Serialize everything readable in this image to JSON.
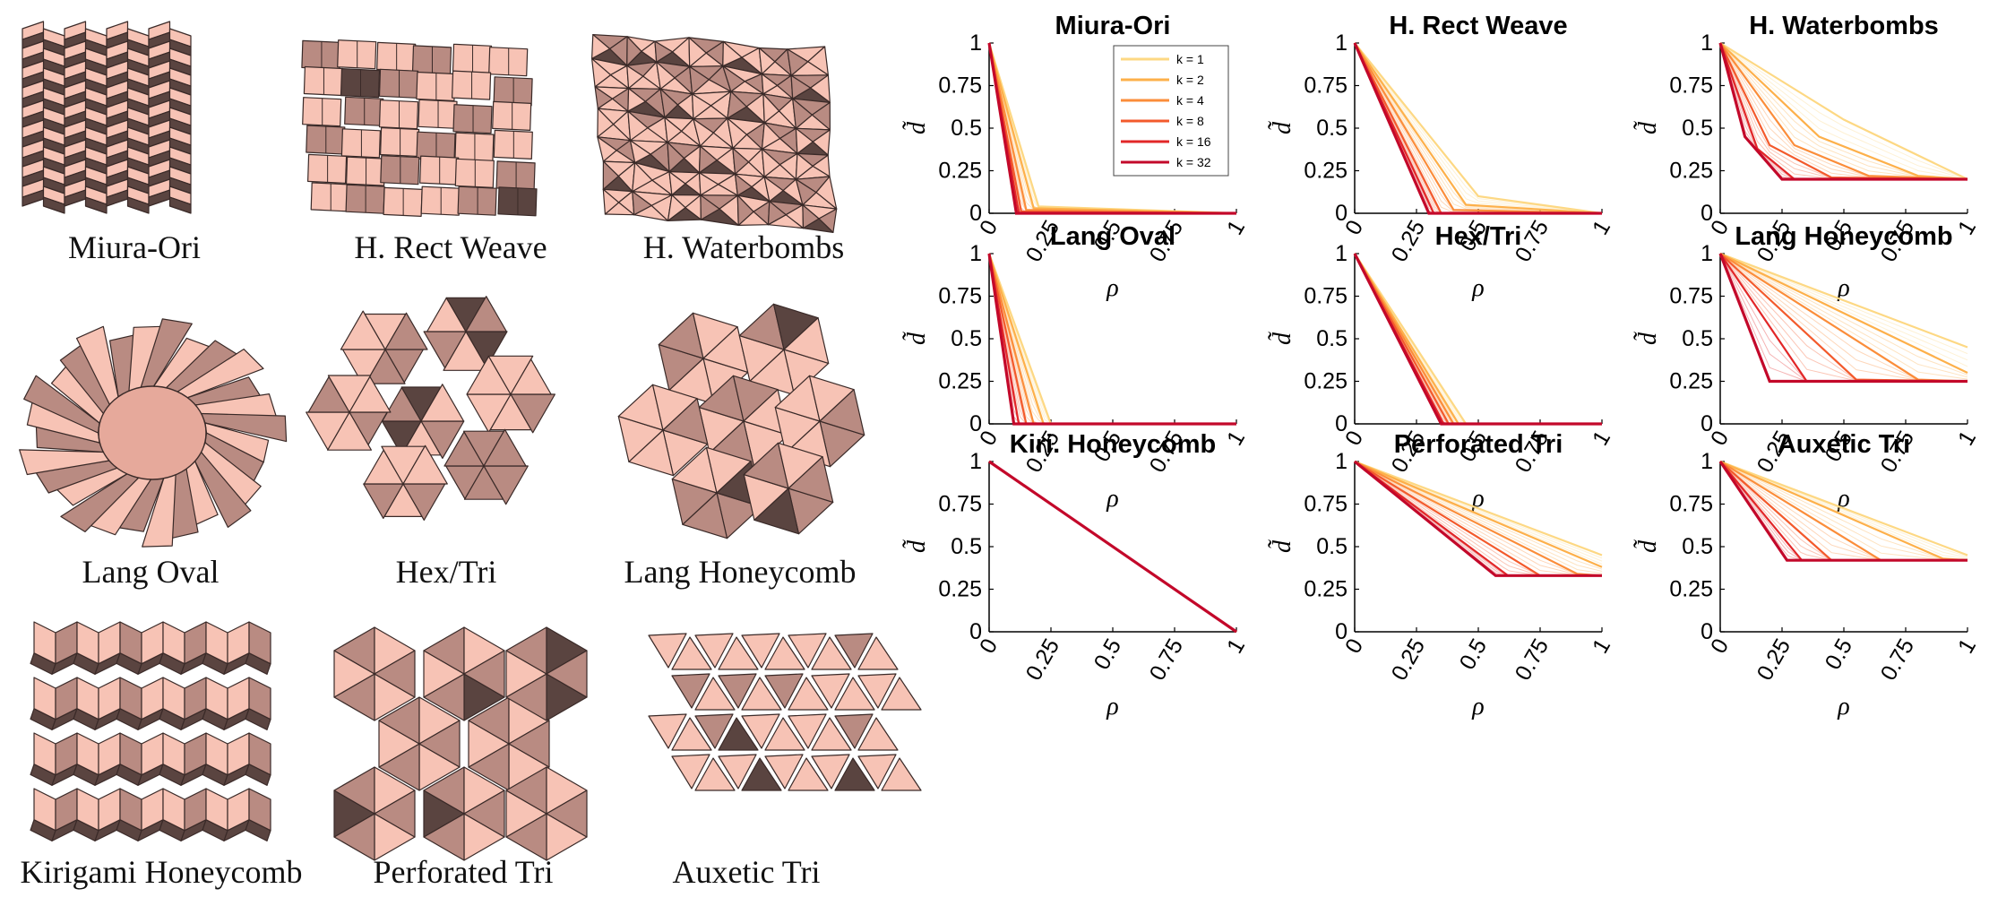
{
  "figure": {
    "captions": [
      "Miura-Ori",
      "H. Rect Weave",
      "H. Waterbombs",
      "Lang Oval",
      "Hex/Tri",
      "Lang Honeycomb",
      "Kirigami Honeycomb",
      "Perforated Tri",
      "Auxetic Tri"
    ]
  },
  "colors": {
    "face": "#f7c3b5",
    "face_shaded": "#b98b82",
    "face_dark": "#5a4440",
    "edge": "#3a2a28",
    "series": [
      "#fdd883",
      "#fdb04a",
      "#fb8d3a",
      "#f35a2c",
      "#e22728",
      "#c3082a"
    ]
  },
  "chart_data": [
    {
      "type": "line",
      "title": "Miura-Ori",
      "xlabel": "ρ",
      "ylabel": "d̃",
      "xlim": [
        0,
        1
      ],
      "ylim": [
        0,
        1
      ],
      "xticks": [
        "0",
        "0.25",
        "0.5",
        "0.75",
        "1"
      ],
      "yticks": [
        "0",
        "0.25",
        "0.5",
        "0.75",
        "1"
      ],
      "legend": {
        "position": "top-right",
        "entries": [
          "k = 1",
          "k = 2",
          "k = 4",
          "k = 8",
          "k = 16",
          "k = 32"
        ]
      },
      "series": [
        {
          "name": "k = 1",
          "x": [
            0,
            0.2,
            1
          ],
          "y": [
            1,
            0.04,
            0
          ]
        },
        {
          "name": "k = 2",
          "x": [
            0,
            0.18,
            1
          ],
          "y": [
            1,
            0.03,
            0
          ]
        },
        {
          "name": "k = 4",
          "x": [
            0,
            0.15,
            1
          ],
          "y": [
            1,
            0.02,
            0
          ]
        },
        {
          "name": "k = 8",
          "x": [
            0,
            0.13,
            1
          ],
          "y": [
            1,
            0.01,
            0
          ]
        },
        {
          "name": "k = 16",
          "x": [
            0,
            0.12,
            1
          ],
          "y": [
            1,
            0,
            0
          ]
        },
        {
          "name": "k = 32",
          "x": [
            0,
            0.11,
            1
          ],
          "y": [
            1,
            0,
            0
          ]
        }
      ]
    },
    {
      "type": "line",
      "title": "H. Rect Weave",
      "xlabel": "ρ",
      "ylabel": "d̃",
      "xlim": [
        0,
        1
      ],
      "ylim": [
        0,
        1
      ],
      "xticks": [
        "0",
        "0.25",
        "0.5",
        "0.75",
        "1"
      ],
      "yticks": [
        "0",
        "0.25",
        "0.5",
        "0.75",
        "1"
      ],
      "series": [
        {
          "name": "k = 1",
          "x": [
            0,
            0.5,
            1
          ],
          "y": [
            1,
            0.1,
            0
          ]
        },
        {
          "name": "k = 2",
          "x": [
            0,
            0.45,
            1
          ],
          "y": [
            1,
            0.05,
            0
          ]
        },
        {
          "name": "k = 4",
          "x": [
            0,
            0.4,
            1
          ],
          "y": [
            1,
            0.02,
            0
          ]
        },
        {
          "name": "k = 8",
          "x": [
            0,
            0.35,
            1
          ],
          "y": [
            1,
            0,
            0
          ]
        },
        {
          "name": "k = 16",
          "x": [
            0,
            0.32,
            1
          ],
          "y": [
            1,
            0,
            0
          ]
        },
        {
          "name": "k = 32",
          "x": [
            0,
            0.3,
            1
          ],
          "y": [
            1,
            0,
            0
          ]
        }
      ]
    },
    {
      "type": "line",
      "title": "H. Waterbombs",
      "xlabel": "ρ",
      "ylabel": "d̃",
      "xlim": [
        0,
        1
      ],
      "ylim": [
        0,
        1
      ],
      "xticks": [
        "0",
        "0.25",
        "0.5",
        "0.75",
        "1"
      ],
      "yticks": [
        "0",
        "0.25",
        "0.5",
        "0.75",
        "1"
      ],
      "series": [
        {
          "name": "k = 1",
          "x": [
            0,
            0.5,
            1
          ],
          "y": [
            1,
            0.55,
            0.2
          ]
        },
        {
          "name": "k = 2",
          "x": [
            0,
            0.4,
            0.8,
            1
          ],
          "y": [
            1,
            0.45,
            0.22,
            0.2
          ]
        },
        {
          "name": "k = 4",
          "x": [
            0,
            0.3,
            0.6,
            1
          ],
          "y": [
            1,
            0.4,
            0.22,
            0.2
          ]
        },
        {
          "name": "k = 8",
          "x": [
            0,
            0.2,
            0.45,
            1
          ],
          "y": [
            1,
            0.4,
            0.21,
            0.2
          ]
        },
        {
          "name": "k = 16",
          "x": [
            0,
            0.15,
            0.3,
            1
          ],
          "y": [
            1,
            0.38,
            0.2,
            0.2
          ]
        },
        {
          "name": "k = 32",
          "x": [
            0,
            0.1,
            0.25,
            1
          ],
          "y": [
            1,
            0.45,
            0.2,
            0.2
          ]
        }
      ]
    },
    {
      "type": "line",
      "title": "Lang Oval",
      "xlabel": "ρ",
      "ylabel": "d̃",
      "xlim": [
        0,
        1
      ],
      "ylim": [
        0,
        1
      ],
      "xticks": [
        "0",
        "0.25",
        "0.5",
        "0.75",
        "1"
      ],
      "yticks": [
        "0",
        "0.25",
        "0.5",
        "0.75",
        "1"
      ],
      "series": [
        {
          "name": "k = 1",
          "x": [
            0,
            0.25,
            1
          ],
          "y": [
            1,
            0,
            0
          ]
        },
        {
          "name": "k = 2",
          "x": [
            0,
            0.22,
            1
          ],
          "y": [
            1,
            0,
            0
          ]
        },
        {
          "name": "k = 4",
          "x": [
            0,
            0.18,
            1
          ],
          "y": [
            1,
            0,
            0
          ]
        },
        {
          "name": "k = 8",
          "x": [
            0,
            0.15,
            1
          ],
          "y": [
            1,
            0,
            0
          ]
        },
        {
          "name": "k = 16",
          "x": [
            0,
            0.12,
            1
          ],
          "y": [
            1,
            0,
            0
          ]
        },
        {
          "name": "k = 32",
          "x": [
            0,
            0.1,
            1
          ],
          "y": [
            1,
            0,
            0
          ]
        }
      ]
    },
    {
      "type": "line",
      "title": "Hex/Tri",
      "xlabel": "ρ",
      "ylabel": "d̃",
      "xlim": [
        0,
        1
      ],
      "ylim": [
        0,
        1
      ],
      "xticks": [
        "0",
        "0.25",
        "0.5",
        "0.75",
        "1"
      ],
      "yticks": [
        "0",
        "0.25",
        "0.5",
        "0.75",
        "1"
      ],
      "series": [
        {
          "name": "k = 1",
          "x": [
            0,
            0.45,
            1
          ],
          "y": [
            1,
            0,
            0
          ]
        },
        {
          "name": "k = 2",
          "x": [
            0,
            0.42,
            1
          ],
          "y": [
            1,
            0,
            0
          ]
        },
        {
          "name": "k = 4",
          "x": [
            0,
            0.4,
            1
          ],
          "y": [
            1,
            0,
            0
          ]
        },
        {
          "name": "k = 8",
          "x": [
            0,
            0.38,
            1
          ],
          "y": [
            1,
            0,
            0
          ]
        },
        {
          "name": "k = 16",
          "x": [
            0,
            0.36,
            1
          ],
          "y": [
            1,
            0,
            0
          ]
        },
        {
          "name": "k = 32",
          "x": [
            0,
            0.35,
            1
          ],
          "y": [
            1,
            0,
            0
          ]
        }
      ]
    },
    {
      "type": "line",
      "title": "Lang Honeycomb",
      "xlabel": "ρ",
      "ylabel": "d̃",
      "xlim": [
        0,
        1
      ],
      "ylim": [
        0,
        1
      ],
      "xticks": [
        "0",
        "0.25",
        "0.5",
        "0.75",
        "1"
      ],
      "yticks": [
        "0",
        "0.25",
        "0.5",
        "0.75",
        "1"
      ],
      "series": [
        {
          "name": "k = 1",
          "x": [
            0,
            1
          ],
          "y": [
            1,
            0.45
          ]
        },
        {
          "name": "k = 2",
          "x": [
            0,
            1
          ],
          "y": [
            1,
            0.3
          ]
        },
        {
          "name": "k = 4",
          "x": [
            0,
            0.8,
            1
          ],
          "y": [
            1,
            0.26,
            0.25
          ]
        },
        {
          "name": "k = 8",
          "x": [
            0,
            0.55,
            1
          ],
          "y": [
            1,
            0.26,
            0.25
          ]
        },
        {
          "name": "k = 16",
          "x": [
            0,
            0.35,
            1
          ],
          "y": [
            1,
            0.25,
            0.25
          ]
        },
        {
          "name": "k = 32",
          "x": [
            0,
            0.2,
            1
          ],
          "y": [
            1,
            0.25,
            0.25
          ]
        }
      ]
    },
    {
      "type": "line",
      "title": "Kiri. Honeycomb",
      "xlabel": "ρ",
      "ylabel": "d̃",
      "xlim": [
        0,
        1
      ],
      "ylim": [
        0,
        1
      ],
      "xticks": [
        "0",
        "0.25",
        "0.5",
        "0.75",
        "1"
      ],
      "yticks": [
        "0",
        "0.25",
        "0.5",
        "0.75",
        "1"
      ],
      "series": [
        {
          "name": "k = 1",
          "x": [
            0,
            1
          ],
          "y": [
            1,
            0
          ]
        },
        {
          "name": "k = 2",
          "x": [
            0,
            1
          ],
          "y": [
            1,
            0
          ]
        },
        {
          "name": "k = 4",
          "x": [
            0,
            1
          ],
          "y": [
            1,
            0
          ]
        },
        {
          "name": "k = 8",
          "x": [
            0,
            1
          ],
          "y": [
            1,
            0
          ]
        },
        {
          "name": "k = 16",
          "x": [
            0,
            1
          ],
          "y": [
            1,
            0
          ]
        },
        {
          "name": "k = 32",
          "x": [
            0,
            1
          ],
          "y": [
            1,
            0
          ]
        }
      ]
    },
    {
      "type": "line",
      "title": "Perforated Tri",
      "xlabel": "ρ",
      "ylabel": "d̃",
      "xlim": [
        0,
        1
      ],
      "ylim": [
        0,
        1
      ],
      "xticks": [
        "0",
        "0.25",
        "0.5",
        "0.75",
        "1"
      ],
      "yticks": [
        "0",
        "0.25",
        "0.5",
        "0.75",
        "1"
      ],
      "series": [
        {
          "name": "k = 1",
          "x": [
            0,
            1
          ],
          "y": [
            1,
            0.45
          ]
        },
        {
          "name": "k = 2",
          "x": [
            0,
            1
          ],
          "y": [
            1,
            0.38
          ]
        },
        {
          "name": "k = 4",
          "x": [
            0,
            0.9,
            1
          ],
          "y": [
            1,
            0.34,
            0.33
          ]
        },
        {
          "name": "k = 8",
          "x": [
            0,
            0.75,
            1
          ],
          "y": [
            1,
            0.33,
            0.33
          ]
        },
        {
          "name": "k = 16",
          "x": [
            0,
            0.62,
            1
          ],
          "y": [
            1,
            0.33,
            0.33
          ]
        },
        {
          "name": "k = 32",
          "x": [
            0,
            0.57,
            1
          ],
          "y": [
            1,
            0.33,
            0.33
          ]
        }
      ]
    },
    {
      "type": "line",
      "title": "Auxetic Tri",
      "xlabel": "ρ",
      "ylabel": "d̃",
      "xlim": [
        0,
        1
      ],
      "ylim": [
        0,
        1
      ],
      "xticks": [
        "0",
        "0.25",
        "0.5",
        "0.75",
        "1"
      ],
      "yticks": [
        "0",
        "0.25",
        "0.5",
        "0.75",
        "1"
      ],
      "series": [
        {
          "name": "k = 1",
          "x": [
            0,
            1
          ],
          "y": [
            1,
            0.45
          ]
        },
        {
          "name": "k = 2",
          "x": [
            0,
            0.9,
            1
          ],
          "y": [
            1,
            0.43,
            0.42
          ]
        },
        {
          "name": "k = 4",
          "x": [
            0,
            0.65,
            1
          ],
          "y": [
            1,
            0.42,
            0.42
          ]
        },
        {
          "name": "k = 8",
          "x": [
            0,
            0.45,
            1
          ],
          "y": [
            1,
            0.42,
            0.42
          ]
        },
        {
          "name": "k = 16",
          "x": [
            0,
            0.33,
            1
          ],
          "y": [
            1,
            0.42,
            0.42
          ]
        },
        {
          "name": "k = 32",
          "x": [
            0,
            0.27,
            1
          ],
          "y": [
            1,
            0.42,
            0.42
          ]
        }
      ]
    }
  ]
}
